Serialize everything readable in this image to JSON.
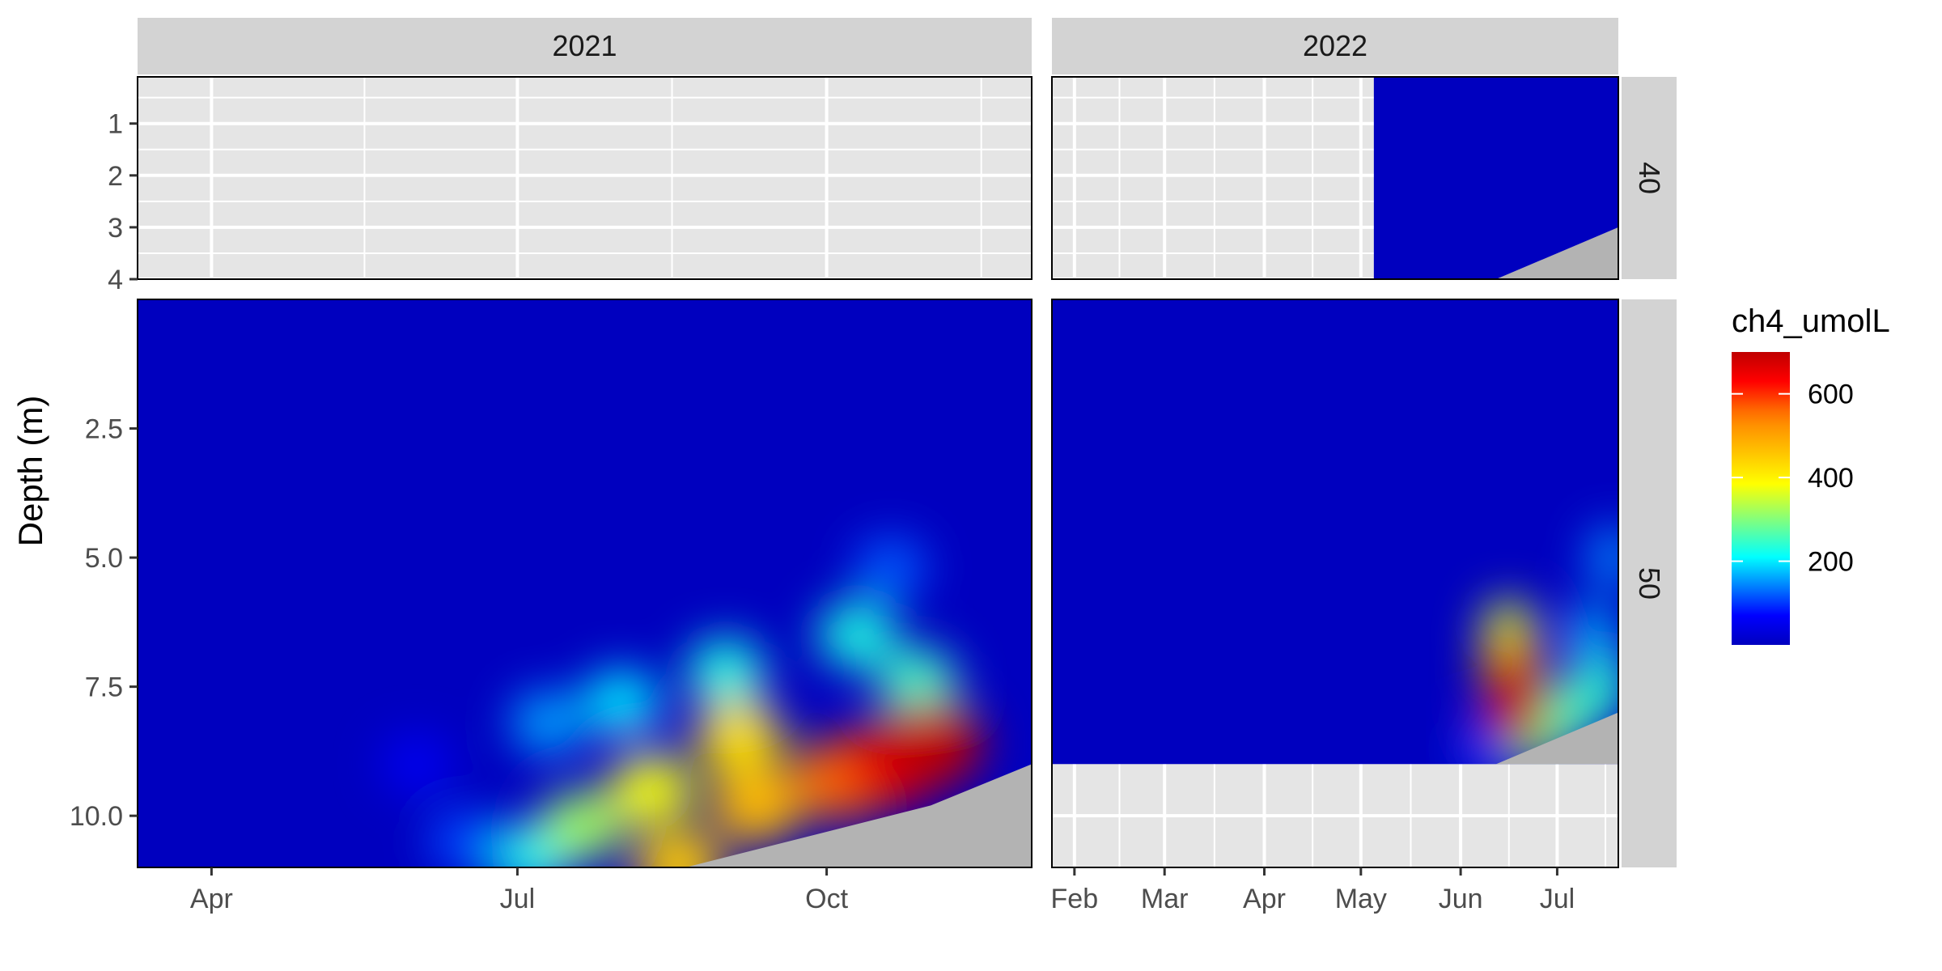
{
  "chart_data": {
    "type": "heatmap",
    "title": "",
    "xlabel": "",
    "ylabel": "Depth (m)",
    "value_variable": "ch4_umolL",
    "colors": {
      "panel_background": "#e5e5e5",
      "gridline": "#ffffff",
      "strip_background": "#d3d3d3",
      "below_bottom_fill": "#b3b3b3",
      "colorscale": [
        "#0000bf",
        "#0000ff",
        "#00ffff",
        "#ffff00",
        "#ff7f00",
        "#ff0000",
        "#bf0000"
      ]
    },
    "facet_columns": [
      {
        "label": "2021",
        "x_range": [
          "2021-03-10",
          "2021-12-01"
        ],
        "x_ticks": [
          {
            "date": "2021-04-01",
            "label": "Apr"
          },
          {
            "date": "2021-07-01",
            "label": "Jul"
          },
          {
            "date": "2021-10-01",
            "label": "Oct"
          }
        ]
      },
      {
        "label": "2022",
        "x_range": [
          "2022-01-25",
          "2022-07-20"
        ],
        "x_ticks": [
          {
            "date": "2022-02-01",
            "label": "Feb"
          },
          {
            "date": "2022-03-01",
            "label": "Mar"
          },
          {
            "date": "2022-04-01",
            "label": "Apr"
          },
          {
            "date": "2022-05-01",
            "label": "May"
          },
          {
            "date": "2022-06-01",
            "label": "Jun"
          },
          {
            "date": "2022-07-01",
            "label": "Jul"
          }
        ]
      }
    ],
    "facet_rows": [
      {
        "label": "40",
        "y_range": [
          0.1,
          4.0
        ],
        "y_reversed": true,
        "y_ticks": [
          1,
          2,
          3,
          4
        ],
        "y_tick_labels": [
          "1",
          "2",
          "3",
          "4"
        ]
      },
      {
        "label": "50",
        "y_range": [
          0.0,
          11.0
        ],
        "y_reversed": true,
        "y_ticks": [
          2.5,
          5.0,
          7.5,
          10.0
        ],
        "y_tick_labels": [
          "2.5",
          "5.0",
          "7.5",
          "10.0"
        ]
      }
    ],
    "legend": {
      "title": "ch4_umolL",
      "position": "right",
      "range": [
        0,
        700
      ],
      "ticks": [
        200,
        400,
        600
      ],
      "tick_labels": [
        "200",
        "400",
        "600"
      ]
    },
    "panels": [
      {
        "row": "40",
        "col": "2021",
        "has_data": false
      },
      {
        "row": "40",
        "col": "2022",
        "has_data": true,
        "data_x_range": [
          "2022-05-05",
          "2022-07-20"
        ],
        "bottom_depth": [
          {
            "date": "2022-06-12",
            "depth": 4.0
          },
          {
            "date": "2022-07-20",
            "depth": 3.0
          }
        ],
        "hotspots": []
      },
      {
        "row": "50",
        "col": "2021",
        "has_data": true,
        "data_x_range": [
          "2021-03-10",
          "2021-12-01"
        ],
        "bottom_depth": [
          {
            "date": "2021-08-20",
            "depth": 11.0
          },
          {
            "date": "2021-11-01",
            "depth": 9.8
          },
          {
            "date": "2021-12-01",
            "depth": 9.0
          }
        ],
        "hotspots": [
          {
            "date": "2021-08-18",
            "depth": 11.0,
            "value": 450
          },
          {
            "date": "2021-09-10",
            "depth": 9.8,
            "value": 470
          },
          {
            "date": "2021-10-05",
            "depth": 9.3,
            "value": 560
          },
          {
            "date": "2021-10-20",
            "depth": 9.0,
            "value": 650
          },
          {
            "date": "2021-11-01",
            "depth": 8.6,
            "value": 700
          },
          {
            "date": "2021-09-05",
            "depth": 8.5,
            "value": 420
          },
          {
            "date": "2021-08-10",
            "depth": 9.5,
            "value": 380
          },
          {
            "date": "2021-07-20",
            "depth": 10.2,
            "value": 320
          },
          {
            "date": "2021-07-05",
            "depth": 10.8,
            "value": 220
          },
          {
            "date": "2021-07-10",
            "depth": 8.2,
            "value": 160
          },
          {
            "date": "2021-08-01",
            "depth": 7.8,
            "value": 200
          },
          {
            "date": "2021-09-01",
            "depth": 7.2,
            "value": 230
          },
          {
            "date": "2021-10-10",
            "depth": 6.5,
            "value": 230
          },
          {
            "date": "2021-10-20",
            "depth": 5.2,
            "value": 120
          },
          {
            "date": "2021-10-28",
            "depth": 7.4,
            "value": 250
          },
          {
            "date": "2021-06-15",
            "depth": 10.5,
            "value": 110
          },
          {
            "date": "2021-06-01",
            "depth": 9.0,
            "value": 60
          }
        ]
      },
      {
        "row": "50",
        "col": "2022",
        "has_data": true,
        "data_x_range": [
          "2022-01-25",
          "2022-07-20"
        ],
        "data_max_depth": 9.0,
        "bottom_depth": [
          {
            "date": "2022-06-12",
            "depth": 9.0
          },
          {
            "date": "2022-07-20",
            "depth": 8.0
          }
        ],
        "hotspots": [
          {
            "date": "2022-06-18",
            "depth": 7.8,
            "value": 700
          },
          {
            "date": "2022-06-17",
            "depth": 7.2,
            "value": 520
          },
          {
            "date": "2022-06-16",
            "depth": 6.5,
            "value": 350
          },
          {
            "date": "2022-06-24",
            "depth": 8.4,
            "value": 300
          },
          {
            "date": "2022-07-05",
            "depth": 8.0,
            "value": 260
          },
          {
            "date": "2022-07-12",
            "depth": 6.5,
            "value": 170
          },
          {
            "date": "2022-07-18",
            "depth": 5.0,
            "value": 150
          },
          {
            "date": "2022-07-15",
            "depth": 7.5,
            "value": 240
          },
          {
            "date": "2022-06-08",
            "depth": 8.7,
            "value": 100
          }
        ]
      }
    ]
  }
}
